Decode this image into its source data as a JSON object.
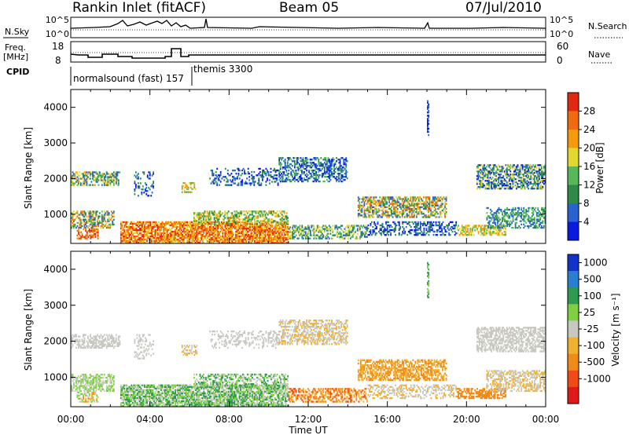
{
  "header": {
    "radar": "Rankin Inlet (fitACF)",
    "beam": "Beam 05",
    "date": "07/Jul/2010"
  },
  "top_panels": {
    "nsky_label": "N.Sky",
    "nsearch_label": "N.Search",
    "count_axis_left": [
      "10^5",
      "10^0"
    ],
    "count_axis_right": [
      "10^5",
      "10^0"
    ],
    "freq_label": "Freq.",
    "freq_unit": "[MHz]",
    "freq_ticks": [
      "18",
      "8"
    ],
    "nave_label": "Nave",
    "nave_ticks": [
      "60",
      "0"
    ],
    "cpid_label": "CPID",
    "cpid_segments": [
      "normalsound (fast) 157",
      "themis 3300"
    ]
  },
  "chart_data": [
    {
      "type": "heatmap",
      "name": "power",
      "ylabel": "Slant Range [km]",
      "ylim": [
        180,
        4500
      ],
      "y_ticks": [
        "1000",
        "2000",
        "3000",
        "4000"
      ],
      "xlabel": "Time UT",
      "x_ticks": [
        "00:00",
        "04:00",
        "08:00",
        "12:00",
        "16:00",
        "20:00",
        "00:00"
      ],
      "xlim_hours": [
        0,
        24
      ],
      "colorbar_label": "Power [dB]",
      "colorbar_ticks": [
        "4",
        "8",
        "12",
        "16",
        "20",
        "24",
        "28"
      ],
      "colors": [
        "#0b1ae0",
        "#2a62d2",
        "#2e8a47",
        "#57b857",
        "#e2d72d",
        "#f59a0a",
        "#f06a10",
        "#e02a10"
      ]
    },
    {
      "type": "heatmap",
      "name": "velocity",
      "ylabel": "Slant Range [km]",
      "ylim": [
        180,
        4500
      ],
      "y_ticks": [
        "1000",
        "2000",
        "3000",
        "4000"
      ],
      "xlabel": "Time UT",
      "x_ticks": [
        "00:00",
        "04:00",
        "08:00",
        "12:00",
        "16:00",
        "20:00",
        "00:00"
      ],
      "xlim_hours": [
        0,
        24
      ],
      "colorbar_label": "Velocity [m s⁻¹]",
      "colorbar_ticks": [
        "1000",
        "500",
        "100",
        "25",
        "-25",
        "-100",
        "-500",
        "-1000"
      ],
      "colors": [
        "#1233c8",
        "#2a7fd0",
        "#2e9a50",
        "#7fd040",
        "#c8c8c0",
        "#f0b030",
        "#f08a18",
        "#f04a18",
        "#e01818"
      ]
    }
  ]
}
